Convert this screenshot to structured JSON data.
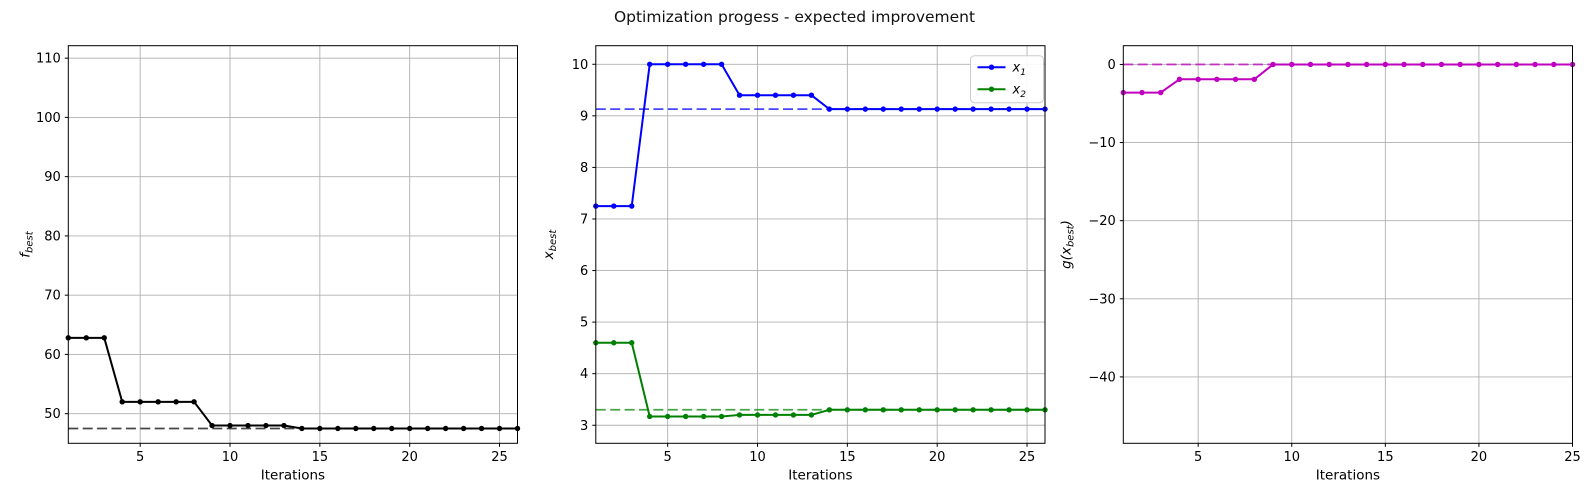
{
  "figure": {
    "title": "Optimization progess - expected improvement",
    "background": "#ffffff",
    "grid_color": "#b0b0b0",
    "spine_color": "#000000",
    "tick_color": "#000000",
    "text_color": "#000000"
  },
  "chart_data": [
    {
      "type": "line",
      "title": "",
      "xlabel": "Iterations",
      "ylabel": {
        "pre": "",
        "base": "f",
        "sub": "best",
        "post": ""
      },
      "xlim": [
        1,
        26
      ],
      "ylim": [
        45.0,
        112.1
      ],
      "xticks": [
        5,
        10,
        15,
        20,
        25
      ],
      "xtick_labels": [
        "5",
        "10",
        "15",
        "20",
        "25"
      ],
      "yticks": [
        50,
        60,
        70,
        80,
        90,
        100,
        110
      ],
      "ytick_labels": [
        "50",
        "60",
        "70",
        "80",
        "90",
        "100",
        "110"
      ],
      "grid": true,
      "legend": null,
      "x": [
        1,
        2,
        3,
        4,
        5,
        6,
        7,
        8,
        9,
        10,
        11,
        12,
        13,
        14,
        15,
        16,
        17,
        18,
        19,
        20,
        21,
        22,
        23,
        24,
        25,
        26
      ],
      "series": [
        {
          "name": "f_best",
          "color": "#000000",
          "marker": "circle",
          "values": [
            62.8,
            62.8,
            62.8,
            52,
            52,
            52,
            52,
            52,
            48,
            48,
            48,
            48,
            48,
            47.5,
            47.5,
            47.5,
            47.5,
            47.5,
            47.5,
            47.5,
            47.5,
            47.5,
            47.5,
            47.5,
            47.5,
            47.5
          ]
        }
      ],
      "ref_lines": [
        {
          "y": 47.5,
          "color": "#000000",
          "style": "dashed"
        }
      ]
    },
    {
      "type": "line",
      "title": "",
      "xlabel": "Iterations",
      "ylabel": {
        "pre": "",
        "base": "x",
        "sub": "best",
        "post": ""
      },
      "xlim": [
        1,
        26
      ],
      "ylim": [
        2.65,
        10.36
      ],
      "xticks": [
        5,
        10,
        15,
        20,
        25
      ],
      "xtick_labels": [
        "5",
        "10",
        "15",
        "20",
        "25"
      ],
      "yticks": [
        3,
        4,
        5,
        6,
        7,
        8,
        9,
        10
      ],
      "ytick_labels": [
        "3",
        "4",
        "5",
        "6",
        "7",
        "8",
        "9",
        "10"
      ],
      "grid": true,
      "legend": {
        "position": "top-right"
      },
      "x": [
        1,
        2,
        3,
        4,
        5,
        6,
        7,
        8,
        9,
        10,
        11,
        12,
        13,
        14,
        15,
        16,
        17,
        18,
        19,
        20,
        21,
        22,
        23,
        24,
        25,
        26
      ],
      "series": [
        {
          "name": "x1",
          "label": {
            "base": "x",
            "sub": "1"
          },
          "color": "#0000ff",
          "marker": "circle",
          "values": [
            7.25,
            7.25,
            7.25,
            10,
            10,
            10,
            10,
            10,
            9.4,
            9.4,
            9.4,
            9.4,
            9.4,
            9.13,
            9.13,
            9.13,
            9.13,
            9.13,
            9.13,
            9.13,
            9.13,
            9.13,
            9.13,
            9.13,
            9.13,
            9.13
          ]
        },
        {
          "name": "x2",
          "label": {
            "base": "x",
            "sub": "2"
          },
          "color": "#008000",
          "marker": "circle",
          "values": [
            4.6,
            4.6,
            4.6,
            3.17,
            3.17,
            3.17,
            3.17,
            3.17,
            3.2,
            3.2,
            3.2,
            3.2,
            3.2,
            3.3,
            3.3,
            3.3,
            3.3,
            3.3,
            3.3,
            3.3,
            3.3,
            3.3,
            3.3,
            3.3,
            3.3,
            3.3
          ]
        }
      ],
      "ref_lines": [
        {
          "y": 9.13,
          "color": "#0000ff",
          "style": "dashed"
        },
        {
          "y": 3.3,
          "color": "#008000",
          "style": "dashed"
        }
      ]
    },
    {
      "type": "line",
      "title": "",
      "xlabel": "Iterations",
      "ylabel": {
        "pre": "g(",
        "base": "x",
        "sub": "best",
        "post": ")"
      },
      "xlim": [
        1,
        25
      ],
      "ylim": [
        -48.5,
        2.4
      ],
      "xticks": [
        5,
        10,
        15,
        20,
        25
      ],
      "xtick_labels": [
        "5",
        "10",
        "15",
        "20",
        "25"
      ],
      "yticks": [
        0,
        -10,
        -20,
        -30,
        -40
      ],
      "ytick_labels": [
        "0",
        "−10",
        "−20",
        "−30",
        "−40"
      ],
      "grid": true,
      "legend": null,
      "x": [
        1,
        2,
        3,
        4,
        5,
        6,
        7,
        8,
        9,
        10,
        11,
        12,
        13,
        14,
        15,
        16,
        17,
        18,
        19,
        20,
        21,
        22,
        23,
        24,
        25
      ],
      "series": [
        {
          "name": "g_xbest",
          "color": "#bf00bf",
          "marker": "circle",
          "values": [
            -3.6,
            -3.6,
            -3.6,
            -1.9,
            -1.9,
            -1.9,
            -1.9,
            -1.9,
            0,
            0,
            0,
            0,
            0,
            0,
            0,
            0,
            0,
            0,
            0,
            0,
            0,
            0,
            0,
            0,
            0
          ]
        }
      ],
      "ref_lines": [
        {
          "y": 0,
          "color": "#bf00bf",
          "style": "dashed"
        }
      ]
    }
  ]
}
